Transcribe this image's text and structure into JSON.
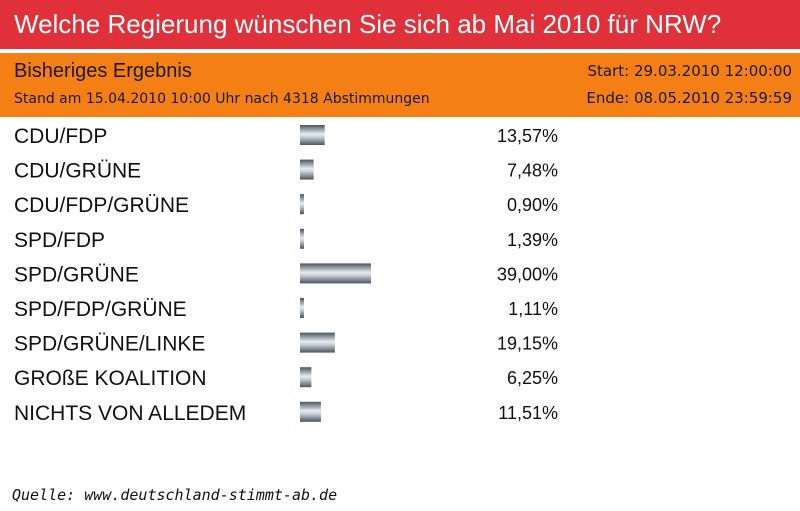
{
  "title": "Welche Regierung wünschen Sie sich ab Mai 2010 für NRW?",
  "header": {
    "heading": "Bisheriges Ergebnis",
    "status": "Stand am 15.04.2010 10:00 Uhr nach 4318 Abstimmungen",
    "start": "Start:  29.03.2010 12:00:00",
    "end": "Ende: 08.05.2010 23:59:59"
  },
  "colors": {
    "title_bar": "#e0303a",
    "header_bar": "#f47f14",
    "bar_dark": "#4a5560",
    "bar_light": "#e6ebef"
  },
  "chart_data": {
    "type": "bar",
    "orientation": "horizontal",
    "categories": [
      "CDU/FDP",
      "CDU/GRÜNE",
      "CDU/FDP/GRÜNE",
      "SPD/FDP",
      "SPD/GRÜNE",
      "SPD/FDP/GRÜNE",
      "SPD/GRÜNE/LINKE",
      "GROßE KOALITION",
      "NICHTS VON ALLEDEM"
    ],
    "values": [
      13.57,
      7.48,
      0.9,
      1.39,
      39.0,
      1.11,
      19.15,
      6.25,
      11.51
    ],
    "value_labels": [
      "13,57%",
      "7,48%",
      "0,90%",
      "1,39%",
      "39,00%",
      "1,11%",
      "19,15%",
      "6,25%",
      "11,51%"
    ],
    "unit": "%",
    "xlim": [
      0,
      39
    ]
  },
  "source": "Quelle: www.deutschland-stimmt-ab.de"
}
